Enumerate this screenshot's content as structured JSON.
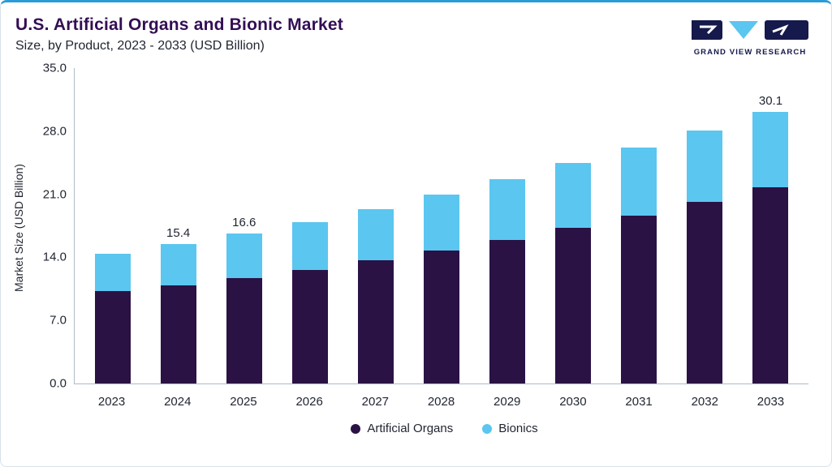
{
  "header": {
    "title": "U.S. Artificial Organs and Bionic Market",
    "subtitle": "Size, by Product, 2023 - 2033 (USD Billion)"
  },
  "logo": {
    "text": "GRAND VIEW RESEARCH"
  },
  "colors": {
    "accent_line": "#2b9cd8",
    "title_text": "#330e54",
    "artificial_organs": "#2a1245",
    "bionics": "#5bc6f0",
    "axis_line": "#aebcc6",
    "logo_navy": "#15194b"
  },
  "chart_data": {
    "type": "bar",
    "stacked": true,
    "title": "U.S. Artificial Organs and Bionic Market Size, by Product, 2023 - 2033 (USD Billion)",
    "xlabel": "",
    "ylabel": "Market Size (USD Billion)",
    "ylim": [
      0,
      35
    ],
    "yticks": [
      "35.0",
      "28.0",
      "21.0",
      "14.0",
      "7.0",
      "0.0"
    ],
    "grid": false,
    "legend_position": "bottom",
    "categories": [
      "2023",
      "2024",
      "2025",
      "2026",
      "2027",
      "2028",
      "2029",
      "2030",
      "2031",
      "2032",
      "2033"
    ],
    "series": [
      {
        "name": "Artificial Organs",
        "color": "#2a1245",
        "values": [
          10.2,
          10.9,
          11.7,
          12.6,
          13.6,
          14.7,
          15.9,
          17.2,
          18.6,
          20.1,
          21.7
        ]
      },
      {
        "name": "Bionics",
        "color": "#5bc6f0",
        "values": [
          4.2,
          4.5,
          4.9,
          5.3,
          5.7,
          6.2,
          6.7,
          7.2,
          7.5,
          7.9,
          8.4
        ]
      }
    ],
    "totals": [
      14.4,
      15.4,
      16.6,
      17.9,
      19.3,
      20.9,
      22.6,
      24.4,
      26.1,
      28.0,
      30.1
    ],
    "bar_labels": [
      "",
      "15.4",
      "16.6",
      "",
      "",
      "",
      "",
      "",
      "",
      "",
      "30.1"
    ]
  }
}
